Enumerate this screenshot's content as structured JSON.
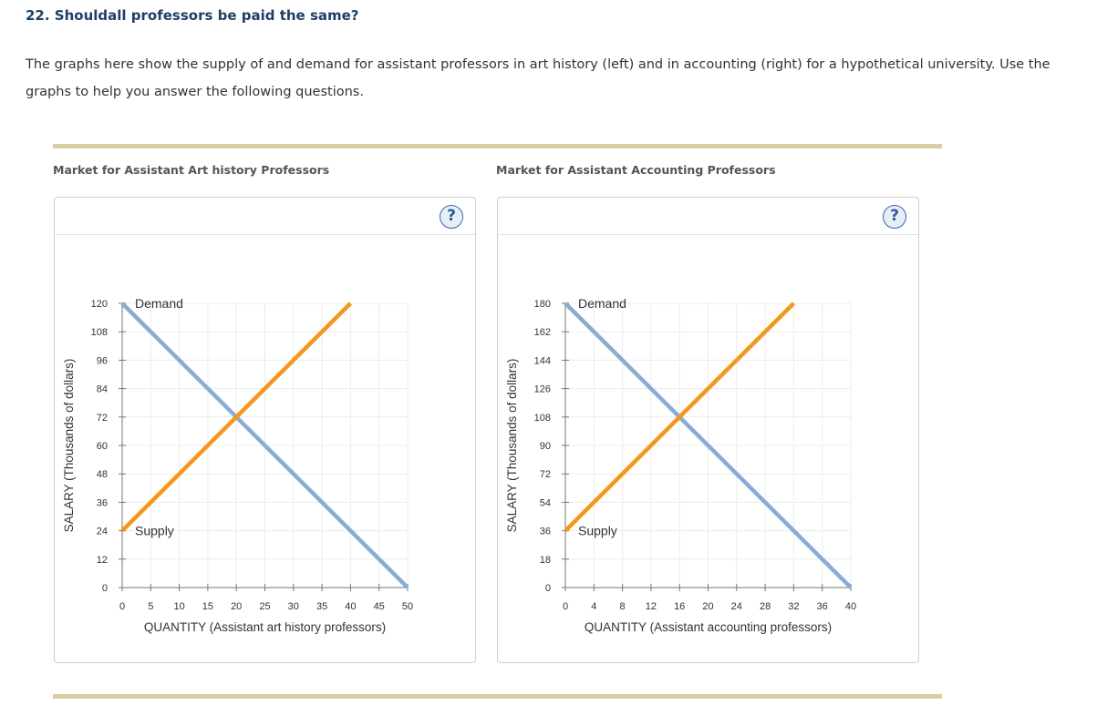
{
  "question": {
    "title": "22. Shouldall professors be paid the same?",
    "intro": "The graphs here show the supply of and demand for assistant professors in art history (left) and in accounting (right) for a hypothetical university. Use the graphs to help you answer the following questions."
  },
  "help_symbol": "?",
  "chart_data": [
    {
      "type": "line",
      "title": "Market for Assistant Art history Professors",
      "xlabel": "QUANTITY (Assistant art history professors)",
      "ylabel": "SALARY (Thousands of dollars)",
      "xlim": [
        0,
        50
      ],
      "ylim": [
        0,
        120
      ],
      "x_ticks": [
        0,
        5,
        10,
        15,
        20,
        25,
        30,
        35,
        40,
        45,
        50
      ],
      "y_ticks": [
        0,
        12,
        24,
        36,
        48,
        60,
        72,
        84,
        96,
        108,
        120
      ],
      "grid": true,
      "series": [
        {
          "name": "Demand",
          "color": "#86aed4",
          "x": [
            0,
            50
          ],
          "y": [
            120,
            0
          ]
        },
        {
          "name": "Supply",
          "color": "#f5961e",
          "x": [
            0,
            40
          ],
          "y": [
            24,
            120
          ]
        }
      ]
    },
    {
      "type": "line",
      "title": "Market for Assistant Accounting Professors",
      "xlabel": "QUANTITY (Assistant accounting professors)",
      "ylabel": "SALARY (Thousands of dollars)",
      "xlim": [
        0,
        40
      ],
      "ylim": [
        0,
        180
      ],
      "x_ticks": [
        0,
        4,
        8,
        12,
        16,
        20,
        24,
        28,
        32,
        36,
        40
      ],
      "y_ticks": [
        0,
        18,
        36,
        54,
        72,
        90,
        108,
        126,
        144,
        162,
        180
      ],
      "grid": true,
      "series": [
        {
          "name": "Demand",
          "color": "#86aed4",
          "x": [
            0,
            40
          ],
          "y": [
            180,
            0
          ]
        },
        {
          "name": "Supply",
          "color": "#f5961e",
          "x": [
            0,
            32
          ],
          "y": [
            36,
            180
          ]
        }
      ]
    }
  ]
}
